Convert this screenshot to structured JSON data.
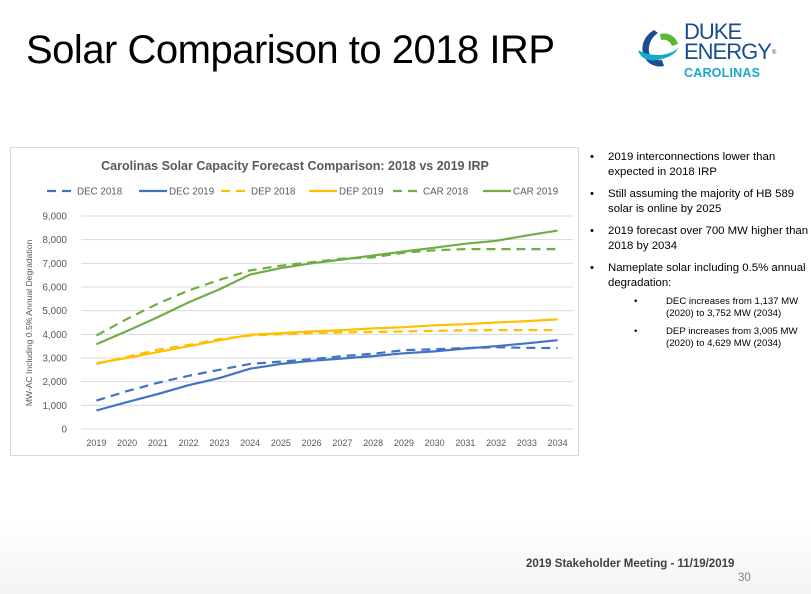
{
  "slide": {
    "title": "Solar Comparison to 2018 IRP",
    "footer": "2019 Stakeholder Meeting - 11/19/2019",
    "page_number": "30"
  },
  "logo": {
    "line1": "DUKE",
    "line2": "ENERGY",
    "registered": "®",
    "line3": "CAROLINAS",
    "colors": {
      "navy": "#1a4d8f",
      "teal": "#17a9c9",
      "green": "#5cb833"
    }
  },
  "bullets": [
    {
      "text": "2019 interconnections lower than expected in 2018 IRP"
    },
    {
      "text": "Still assuming the majority of HB 589 solar is online by 2025"
    },
    {
      "text": "2019 forecast over 700 MW higher than 2018 by 2034"
    },
    {
      "text": "Nameplate solar including 0.5% annual degradation:",
      "sub": [
        "DEC increases from 1,137 MW (2020) to 3,752 MW (2034)",
        "DEP increases from 3,005 MW (2020) to 4,629 MW (2034)"
      ]
    }
  ],
  "chart_data": {
    "type": "line",
    "title": "Carolinas Solar Capacity Forecast Comparison:  2018 vs 2019 IRP",
    "xlabel": "",
    "ylabel": "MW-AC Including 0.5% Annual Degradation",
    "ylim": [
      0,
      9000
    ],
    "yticks": [
      0,
      1000,
      2000,
      3000,
      4000,
      5000,
      6000,
      7000,
      8000,
      9000
    ],
    "ytick_labels": [
      "0",
      "1,000",
      "2,000",
      "3,000",
      "4,000",
      "5,000",
      "6,000",
      "7,000",
      "8,000",
      "9,000"
    ],
    "grid": true,
    "legend_position": "top",
    "x": [
      "2019",
      "2020",
      "2021",
      "2022",
      "2023",
      "2024",
      "2025",
      "2026",
      "2027",
      "2028",
      "2029",
      "2030",
      "2031",
      "2032",
      "2033",
      "2034"
    ],
    "series": [
      {
        "name": "DEC 2018",
        "color": "#4472c4",
        "dashed": true,
        "values": [
          1200,
          1600,
          1950,
          2250,
          2500,
          2750,
          2850,
          2950,
          3080,
          3180,
          3330,
          3370,
          3420,
          3450,
          3430,
          3420
        ]
      },
      {
        "name": "DEC 2019",
        "color": "#4472c4",
        "dashed": false,
        "values": [
          780,
          1137,
          1480,
          1850,
          2150,
          2550,
          2750,
          2880,
          2980,
          3080,
          3200,
          3280,
          3400,
          3500,
          3620,
          3752
        ]
      },
      {
        "name": "DEP 2018",
        "color": "#ffc000",
        "dashed": true,
        "values": [
          2750,
          3050,
          3350,
          3550,
          3800,
          3950,
          4000,
          4050,
          4080,
          4100,
          4120,
          4150,
          4170,
          4180,
          4180,
          4180
        ]
      },
      {
        "name": "DEP 2019",
        "color": "#ffc000",
        "dashed": false,
        "values": [
          2780,
          3005,
          3250,
          3500,
          3750,
          3980,
          4050,
          4120,
          4180,
          4250,
          4300,
          4380,
          4430,
          4500,
          4560,
          4629
        ]
      },
      {
        "name": "CAR 2018",
        "color": "#70ad47",
        "dashed": true,
        "values": [
          3950,
          4650,
          5300,
          5850,
          6300,
          6700,
          6900,
          7050,
          7200,
          7250,
          7450,
          7550,
          7600,
          7600,
          7600,
          7600
        ]
      },
      {
        "name": "CAR 2019",
        "color": "#70ad47",
        "dashed": false,
        "values": [
          3580,
          4142,
          4730,
          5350,
          5900,
          6530,
          6800,
          7000,
          7160,
          7330,
          7500,
          7660,
          7830,
          7950,
          8180,
          8381
        ]
      }
    ]
  }
}
